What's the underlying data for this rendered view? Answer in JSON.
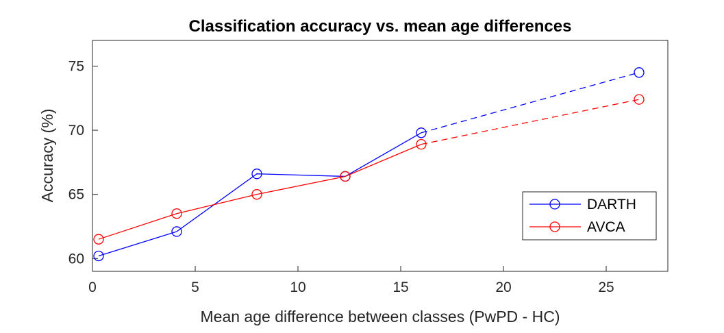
{
  "chart_data": {
    "type": "line",
    "title": "Classification accuracy vs. mean age differences",
    "xlabel": "Mean age difference between classes (PwPD - HC)",
    "ylabel": "Accuracy (%)",
    "xlim": [
      0,
      28
    ],
    "ylim": [
      59,
      77
    ],
    "xticks": [
      0,
      5,
      10,
      15,
      20,
      25
    ],
    "yticks": [
      60,
      65,
      70,
      75
    ],
    "grid": false,
    "legend_position": "bottom-right",
    "series": [
      {
        "name": "DARTH",
        "color": "#0000ff",
        "x": [
          0.3,
          4.1,
          8.0,
          12.3,
          16.0,
          26.6
        ],
        "y": [
          60.2,
          62.1,
          66.6,
          66.4,
          69.8,
          74.5
        ],
        "solid_until_index": 4,
        "dashed_segment": [
          4,
          5
        ]
      },
      {
        "name": "AVCA",
        "color": "#ff0000",
        "x": [
          0.3,
          4.1,
          8.0,
          12.3,
          16.0,
          26.6
        ],
        "y": [
          61.5,
          63.5,
          65.0,
          66.4,
          68.9,
          72.4
        ],
        "solid_until_index": 4,
        "dashed_segment": [
          4,
          5
        ]
      }
    ]
  }
}
